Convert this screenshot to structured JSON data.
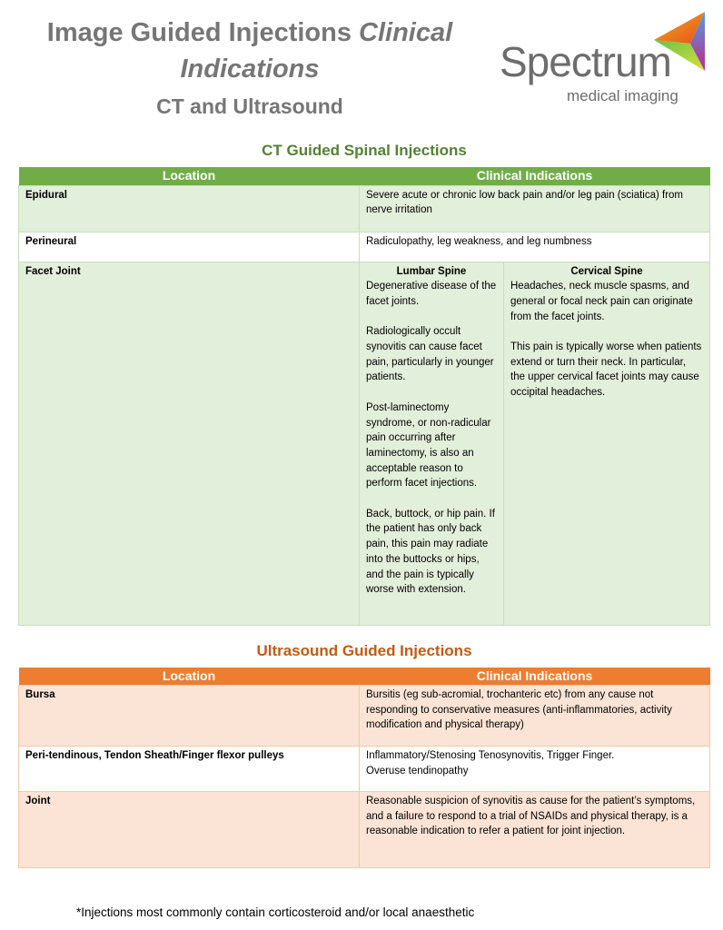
{
  "header": {
    "title_regular": "Image Guided Injections",
    "title_italic": "Clinical Indications",
    "subtitle": "CT and Ultrasound"
  },
  "logo": {
    "word": "Spectrum",
    "tagline": "medical imaging"
  },
  "ct": {
    "title": "CT Guided Spinal Injections",
    "color": "#70AD47",
    "headers": [
      "Location",
      "Clinical Indications"
    ],
    "rows": [
      {
        "location": "Epidural",
        "indication": "Severe acute or chronic low back pain and/or leg pain (sciatica) from nerve irritation"
      },
      {
        "location": "Perineural",
        "indication": "Radiculopathy, leg weakness, and leg numbness"
      }
    ],
    "facet": {
      "location": "Facet Joint",
      "lumbar_title": "Lumbar Spine",
      "lumbar": [
        "Degenerative disease of the facet joints.",
        "Radiologically occult synovitis can cause facet pain, particularly in younger patients.",
        "Post-laminectomy syndrome, or non-radicular pain occurring after laminectomy, is also an acceptable reason to perform facet injections.",
        "Back, buttock, or hip pain. If the patient has only back pain, this pain may radiate into the buttocks or hips, and the pain is typically worse with extension."
      ],
      "cervical_title": "Cervical Spine",
      "cervical": [
        "Headaches, neck muscle spasms, and general or focal neck pain can originate from the facet joints.",
        "This pain is typically worse when patients extend or turn their neck. In particular, the upper cervical facet joints may cause occipital headaches."
      ]
    }
  },
  "us": {
    "title": "Ultrasound Guided Injections",
    "color": "#ED7D31",
    "headers": [
      "Location",
      "Clinical Indications"
    ],
    "rows": [
      {
        "location": "Bursa",
        "indication": "Bursitis (eg sub-acromial, trochanteric etc) from any cause not responding to conservative measures (anti-inflammatories, activity modification and physical therapy)"
      },
      {
        "location": "Peri-tendinous, Tendon Sheath/Finger flexor pulleys",
        "indication": "Inflammatory/Stenosing Tenosynovitis, Trigger Finger.",
        "indication2": "Overuse tendinopathy"
      },
      {
        "location": "Joint",
        "indication": "Reasonable suspicion of synovitis as cause for the patient’s symptoms, and a failure to respond to a trial of NSAIDs and physical therapy, is a reasonable indication to refer a patient for joint injection."
      }
    ]
  },
  "footnote": "*Injections most commonly contain corticosteroid and/or local anaesthetic"
}
